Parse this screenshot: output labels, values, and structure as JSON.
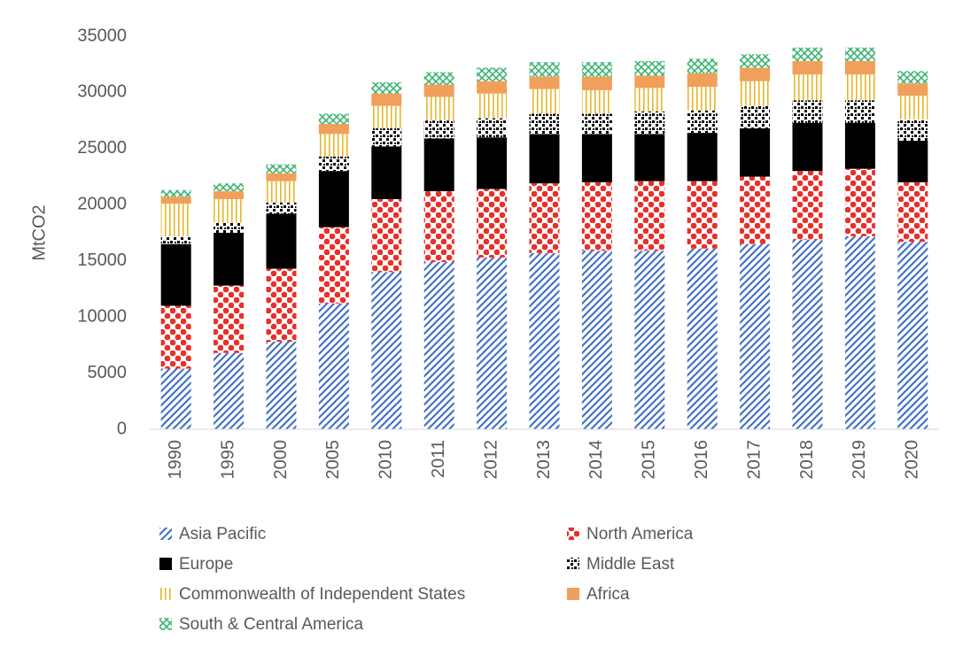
{
  "chart_data": {
    "type": "stacked_bar",
    "y_label": "MtCO2",
    "categories": [
      "1990",
      "1995",
      "2000",
      "2005",
      "2010",
      "2011",
      "2012",
      "2013",
      "2014",
      "2015",
      "2016",
      "2017",
      "2018",
      "2019",
      "2020"
    ],
    "series": [
      {
        "name": "Asia Pacific",
        "color": "#4472c4",
        "values": [
          5400,
          6800,
          7800,
          11200,
          14000,
          14900,
          15300,
          15700,
          15900,
          15900,
          16100,
          16500,
          16900,
          17200,
          16700
        ]
      },
      {
        "name": "North America",
        "color": "#e8302a",
        "values": [
          5600,
          6000,
          6500,
          6800,
          6500,
          6300,
          6100,
          6200,
          6100,
          6200,
          6000,
          6000,
          6100,
          6000,
          5300
        ]
      },
      {
        "name": "Europe",
        "color": "#000000",
        "values": [
          5500,
          4700,
          4900,
          5000,
          4700,
          4700,
          4600,
          4400,
          4300,
          4200,
          4300,
          4300,
          4300,
          4100,
          3700
        ]
      },
      {
        "name": "Middle East",
        "color": "#000000",
        "values": [
          700,
          900,
          1000,
          1300,
          1600,
          1600,
          1700,
          1800,
          1800,
          2000,
          2000,
          2000,
          2000,
          2000,
          1900
        ]
      },
      {
        "name": "Commonwealth of Independent States",
        "color": "#e8b62a",
        "values": [
          2900,
          2100,
          1900,
          2000,
          2000,
          2100,
          2200,
          2200,
          2100,
          2100,
          2100,
          2200,
          2300,
          2300,
          2100
        ]
      },
      {
        "name": "Africa",
        "color": "#f0a05a",
        "values": [
          600,
          700,
          700,
          900,
          1100,
          1100,
          1100,
          1100,
          1200,
          1100,
          1200,
          1200,
          1200,
          1200,
          1100
        ]
      },
      {
        "name": "South & Central America",
        "color": "#3cb371",
        "values": [
          600,
          700,
          800,
          900,
          1000,
          1100,
          1200,
          1300,
          1300,
          1300,
          1300,
          1200,
          1200,
          1200,
          1100
        ]
      }
    ],
    "ylim": [
      0,
      35000
    ],
    "yticks": [
      0,
      5000,
      10000,
      15000,
      20000,
      25000,
      30000,
      35000
    ],
    "grid": false
  }
}
